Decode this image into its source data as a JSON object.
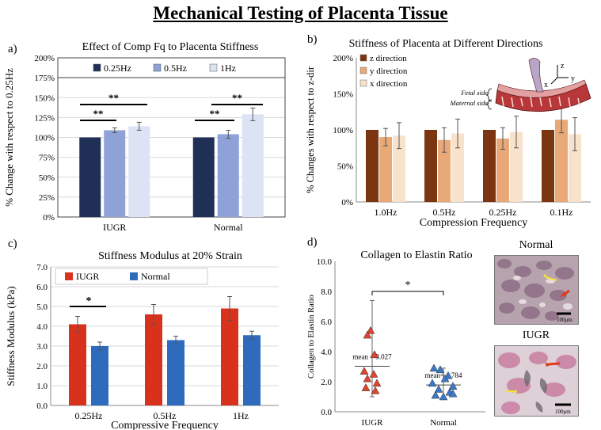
{
  "main_title": "Mechanical Testing of Placenta Tissue",
  "colors": {
    "dark_navy": "#1f2f56",
    "mid_blue": "#8ea2d8",
    "pale_blue": "#dce3f4",
    "brown_dark": "#7b3611",
    "tan": "#e8a877",
    "cream": "#f8e2cc",
    "red": "#d8321d",
    "blue": "#2e6bbd",
    "tri_red": "#e0442e",
    "tri_blue": "#3c78c8"
  },
  "chart_data": [
    {
      "panel": "a)",
      "type": "bar",
      "title": "Effect of Comp Fq to Placenta Stiffness",
      "ylabel": "% Change with respect to 0.25Hz",
      "xlabel": "",
      "ylim": [
        0,
        200
      ],
      "yticks": [
        "0%",
        "25%",
        "50%",
        "75%",
        "100%",
        "125%",
        "150%",
        "175%",
        "200%"
      ],
      "categories": [
        "IUGR",
        "Normal"
      ],
      "series": [
        {
          "name": "0.25Hz",
          "values": [
            100,
            100
          ],
          "errors": [
            0,
            0
          ]
        },
        {
          "name": "0.5Hz",
          "values": [
            109,
            104
          ],
          "errors": [
            3,
            5
          ]
        },
        {
          "name": "1Hz",
          "values": [
            114,
            129
          ],
          "errors": [
            5,
            8
          ]
        }
      ],
      "annotations": [
        "**",
        "**",
        "**",
        "**"
      ],
      "legend": "top"
    },
    {
      "panel": "b)",
      "type": "bar",
      "title": "Stiffness of Placenta at Different Directions",
      "ylabel": "% Changes with respect to z-dir",
      "xlabel": "Compression Frequency",
      "ylim": [
        0,
        200
      ],
      "yticks": [
        "0%",
        "50%",
        "100%",
        "150%",
        "200%"
      ],
      "categories": [
        "1.0Hz",
        "0.5Hz",
        "0.25Hz",
        "0.1Hz"
      ],
      "series": [
        {
          "name": "z direction",
          "values": [
            100,
            100,
            100,
            100
          ],
          "errors": [
            0,
            0,
            0,
            0
          ]
        },
        {
          "name": "y direction",
          "values": [
            90,
            86,
            88,
            114
          ],
          "errors": [
            12,
            17,
            15,
            18
          ]
        },
        {
          "name": "x direction",
          "values": [
            92,
            95,
            97,
            94
          ],
          "errors": [
            18,
            20,
            22,
            23
          ]
        }
      ],
      "diagram_labels": [
        "Fetal side",
        "Maternal side",
        "z",
        "y",
        "x"
      ],
      "legend": "top-left"
    },
    {
      "panel": "c)",
      "type": "bar",
      "title": "Stiffness Modulus at 20% Strain",
      "ylabel": "Stiffness Modulus (kPa)",
      "xlabel": "Compressive Frequency",
      "ylim": [
        0,
        7
      ],
      "yticks": [
        "0.0",
        "1.0",
        "2.0",
        "3.0",
        "4.0",
        "5.0",
        "6.0",
        "7.0"
      ],
      "categories": [
        "0.25Hz",
        "0.5Hz",
        "1Hz"
      ],
      "series": [
        {
          "name": "IUGR",
          "values": [
            4.1,
            4.6,
            4.9
          ],
          "errors": [
            0.4,
            0.5,
            0.6
          ]
        },
        {
          "name": "Normal",
          "values": [
            3.0,
            3.3,
            3.55
          ],
          "errors": [
            0.2,
            0.2,
            0.2
          ]
        }
      ],
      "annotations": [
        "*"
      ],
      "legend": "top-left"
    },
    {
      "panel": "d)",
      "type": "scatter",
      "title": "Collagen to Elastin Ratio",
      "ylabel": "Collagen to Elastin Ratio",
      "xlabel": "",
      "ylim": [
        0,
        10
      ],
      "yticks": [
        "0.0",
        "2.0",
        "4.0",
        "6.0",
        "8.0",
        "10.0"
      ],
      "categories": [
        "IUGR",
        "Normal"
      ],
      "groups": [
        {
          "name": "IUGR",
          "mean": 3.027,
          "sd_high": 7.4,
          "sd_low": 1.0,
          "points": [
            5.4,
            5.1,
            3.8,
            2.7,
            2.5,
            2.2,
            1.9,
            1.6,
            1.4
          ]
        },
        {
          "name": "Normal",
          "mean": 1.784,
          "sd_high": 2.9,
          "sd_low": 0.9,
          "points": [
            2.9,
            2.8,
            2.4,
            2.2,
            1.9,
            1.7,
            1.5,
            1.3,
            1.1,
            1.0,
            1.2
          ]
        }
      ],
      "mean_labels": [
        "mean = 3.027",
        "mean= 1.784"
      ],
      "annotations": [
        "*"
      ]
    }
  ],
  "micrographs": [
    {
      "label": "Normal",
      "scale": "100μm"
    },
    {
      "label": "IUGR",
      "scale": "100μm"
    }
  ]
}
